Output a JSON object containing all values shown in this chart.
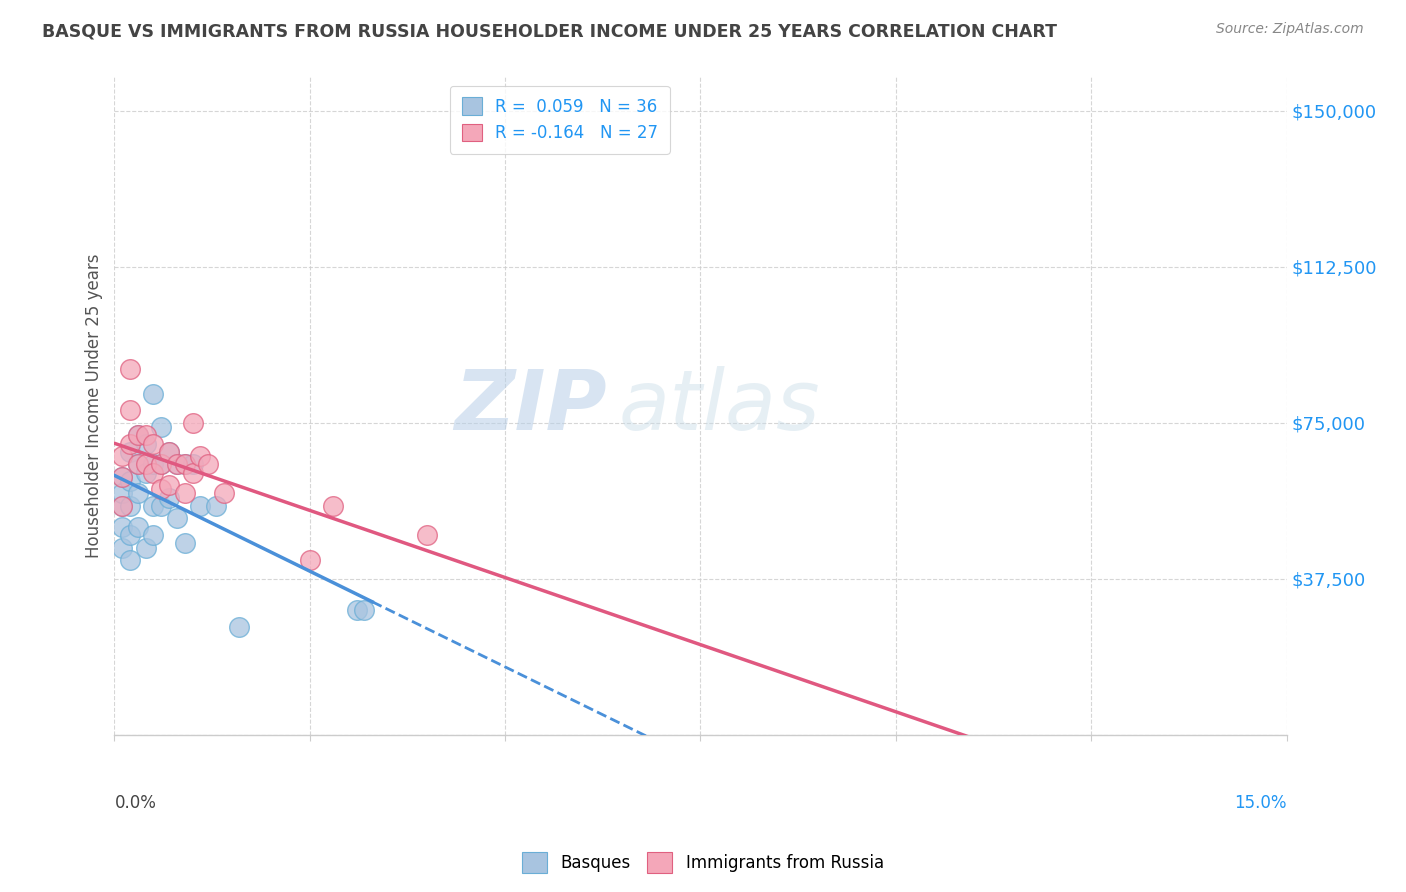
{
  "title": "BASQUE VS IMMIGRANTS FROM RUSSIA HOUSEHOLDER INCOME UNDER 25 YEARS CORRELATION CHART",
  "source": "Source: ZipAtlas.com",
  "ylabel": "Householder Income Under 25 years",
  "yticks": [
    0,
    37500,
    75000,
    112500,
    150000
  ],
  "ytick_labels": [
    "",
    "$37,500",
    "$75,000",
    "$112,500",
    "$150,000"
  ],
  "xmin": 0.0,
  "xmax": 0.15,
  "ymin": 0,
  "ymax": 158000,
  "watermark_zip": "ZIP",
  "watermark_atlas": "atlas",
  "basque_color": "#a8c4e0",
  "basque_edge": "#6aaed6",
  "russia_color": "#f4a7b9",
  "russia_edge": "#e06080",
  "trendline_basque_color": "#4a90d9",
  "trendline_russia_color": "#e05880",
  "grid_color": "#cccccc",
  "title_color": "#444444",
  "source_color": "#888888",
  "ylabel_color": "#555555",
  "right_label_color": "#2196F3",
  "legend_r1_label": "R =  0.059   N = 36",
  "legend_r2_label": "R = -0.164   N = 27",
  "basque_points_x": [
    0.001,
    0.001,
    0.001,
    0.001,
    0.001,
    0.002,
    0.002,
    0.002,
    0.002,
    0.002,
    0.003,
    0.003,
    0.003,
    0.003,
    0.004,
    0.004,
    0.004,
    0.005,
    0.005,
    0.005,
    0.005,
    0.006,
    0.006,
    0.006,
    0.007,
    0.007,
    0.008,
    0.008,
    0.009,
    0.009,
    0.01,
    0.011,
    0.013,
    0.016,
    0.031,
    0.032
  ],
  "basque_points_y": [
    55000,
    62000,
    58000,
    50000,
    45000,
    68000,
    61000,
    55000,
    48000,
    42000,
    72000,
    65000,
    58000,
    50000,
    70000,
    63000,
    45000,
    82000,
    65000,
    55000,
    48000,
    74000,
    65000,
    55000,
    68000,
    57000,
    65000,
    52000,
    65000,
    46000,
    65000,
    55000,
    55000,
    26000,
    30000,
    30000
  ],
  "russia_points_x": [
    0.001,
    0.001,
    0.001,
    0.002,
    0.002,
    0.002,
    0.003,
    0.003,
    0.004,
    0.004,
    0.005,
    0.005,
    0.006,
    0.006,
    0.007,
    0.007,
    0.008,
    0.009,
    0.009,
    0.01,
    0.01,
    0.011,
    0.012,
    0.014,
    0.025,
    0.028,
    0.04
  ],
  "russia_points_y": [
    67000,
    62000,
    55000,
    88000,
    78000,
    70000,
    72000,
    65000,
    72000,
    65000,
    70000,
    63000,
    65000,
    59000,
    68000,
    60000,
    65000,
    65000,
    58000,
    75000,
    63000,
    67000,
    65000,
    58000,
    42000,
    55000,
    48000
  ]
}
